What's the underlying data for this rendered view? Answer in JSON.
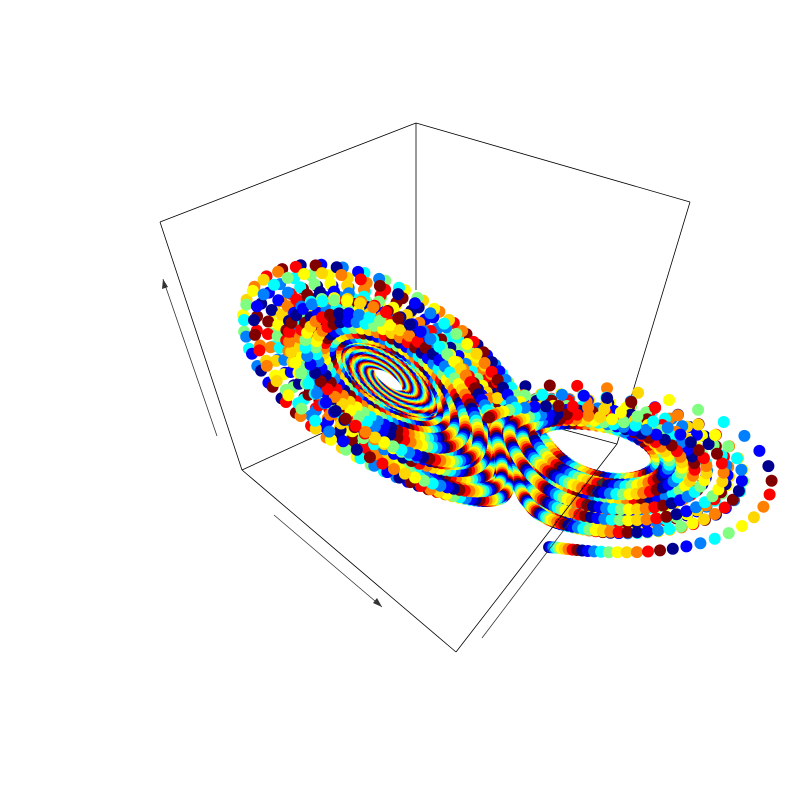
{
  "chart_data": {
    "type": "scatter",
    "projection": "3d",
    "title": "",
    "xlabel": "",
    "ylabel": "",
    "zlabel": "",
    "tick_labels": false,
    "grid": false,
    "legend": "none",
    "box": "full",
    "axis_arrows": true,
    "system": "lorenz",
    "parameters": {
      "sigma": 10,
      "rho": 28,
      "beta": 2.6667
    },
    "initial_state": [
      1,
      1,
      1
    ],
    "xlim": [
      -20,
      20
    ],
    "ylim": [
      -27,
      27
    ],
    "zlim": [
      0,
      50
    ],
    "points": 5000,
    "color_scale": [
      "#00008f",
      "#0000ff",
      "#0080ff",
      "#00ffff",
      "#80ff80",
      "#ffff00",
      "#ffd700",
      "#ff8000",
      "#ff0000",
      "#800000"
    ]
  }
}
